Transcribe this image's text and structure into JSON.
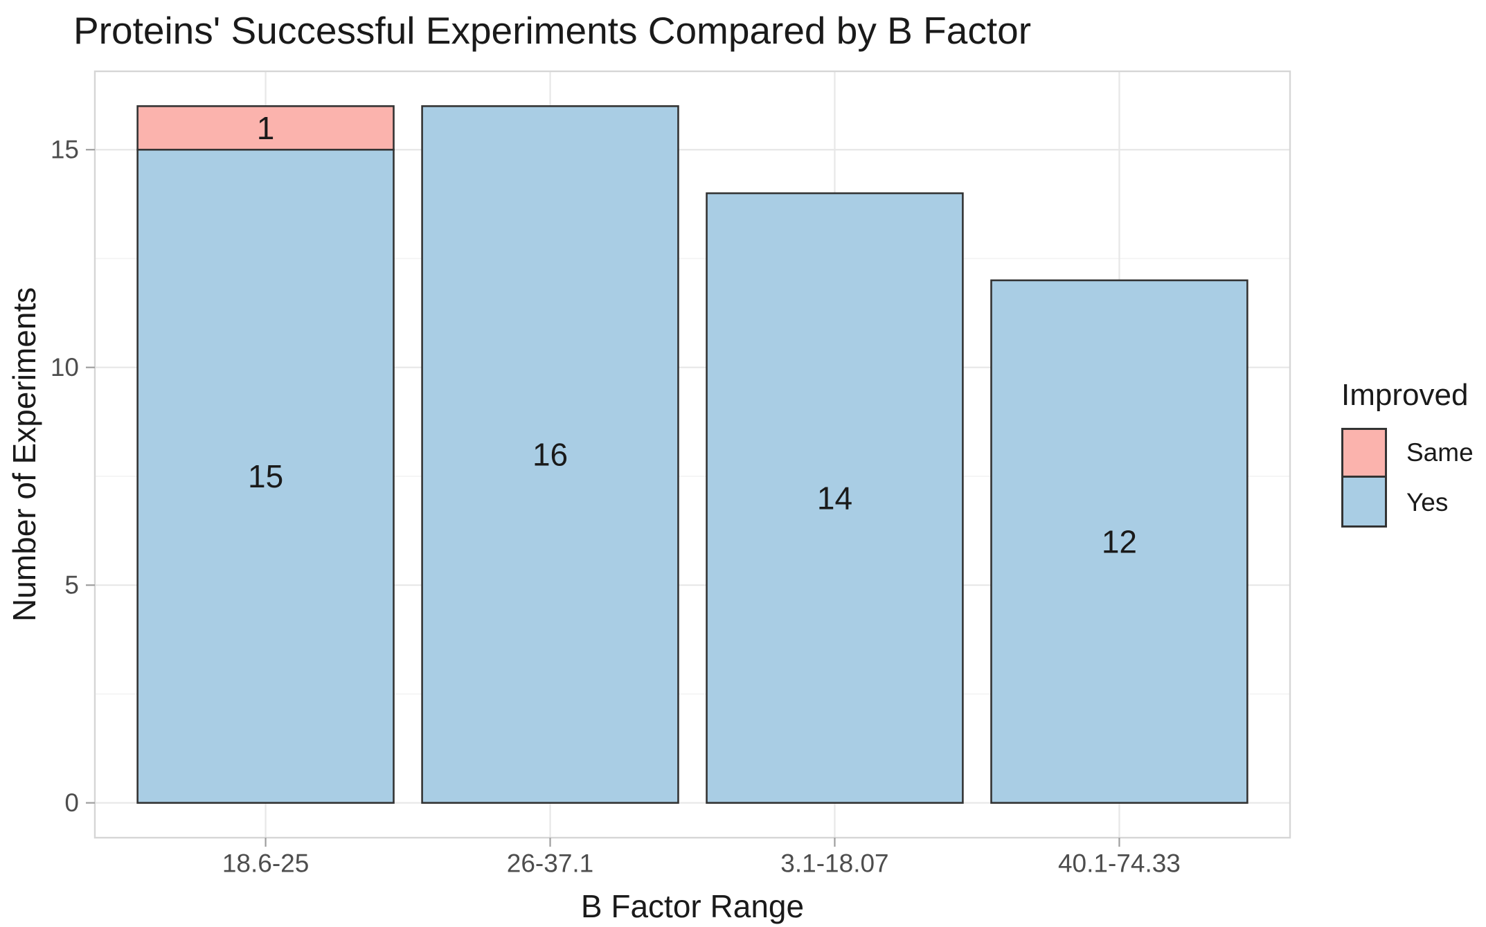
{
  "chart": {
    "title": "Proteins' Successful Experiments Compared by B Factor",
    "xlabel": "B Factor Range",
    "ylabel": "Number of Experiments",
    "legend": {
      "title": "Improved",
      "items": [
        {
          "label": "Same",
          "color": "#FBB3AD"
        },
        {
          "label": "Yes",
          "color": "#A9CDE4"
        }
      ]
    }
  },
  "chart_data": {
    "type": "bar",
    "stacked": true,
    "title": "Proteins' Successful Experiments Compared by B Factor",
    "xlabel": "B Factor Range",
    "ylabel": "Number of Experiments",
    "categories": [
      "18.6-25",
      "26-37.1",
      "3.1-18.07",
      "40.1-74.33"
    ],
    "series": [
      {
        "name": "Yes",
        "color": "#A9CDE4",
        "values": [
          15,
          16,
          14,
          12
        ]
      },
      {
        "name": "Same",
        "color": "#FBB3AD",
        "values": [
          1,
          0,
          0,
          0
        ]
      }
    ],
    "totals": [
      16,
      16,
      14,
      12
    ],
    "bar_labels": [
      [
        "15",
        "1"
      ],
      [
        "16"
      ],
      [
        "14"
      ],
      [
        "12"
      ]
    ],
    "yticks": [
      0,
      5,
      10,
      15
    ],
    "yticks_minor": [
      2.5,
      7.5,
      12.5
    ],
    "ylim": [
      -0.8,
      16.8
    ],
    "grid": true,
    "legend_position": "right",
    "legend_title": "Improved"
  },
  "colors": {
    "bar_outline": "#333333",
    "grid_major": "#E7E7E7",
    "grid_minor": "#F3F3F3",
    "panel_border": "#D6D6D6",
    "tick_mark": "#9E9E9E",
    "tick_label": "#4D4D4D",
    "bar_label": "#1a1a1a"
  }
}
